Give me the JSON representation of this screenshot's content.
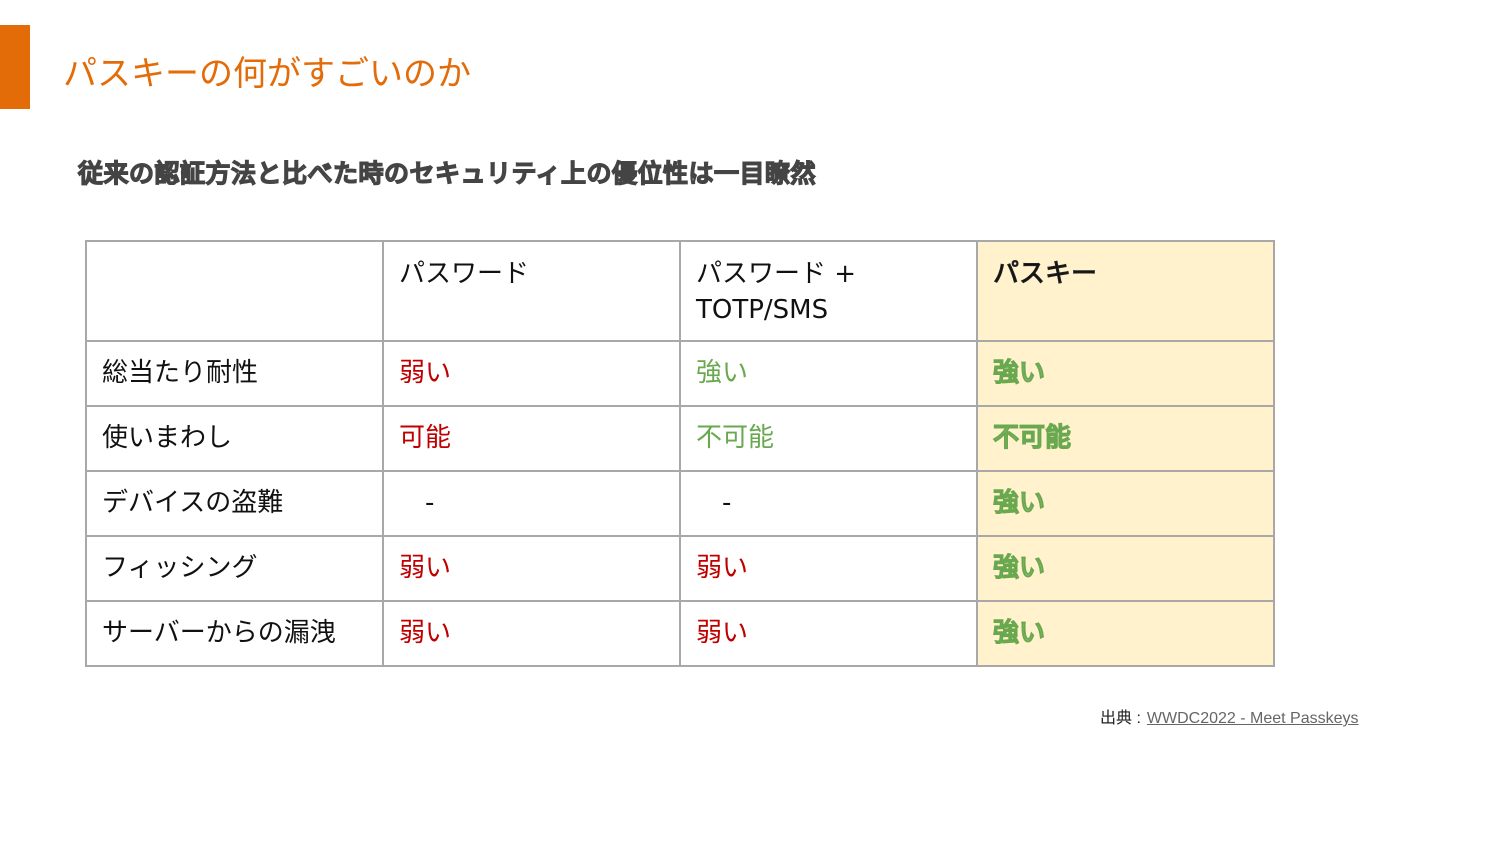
{
  "colors": {
    "accent": "#e36c09",
    "weak": "#c00000",
    "strong": "#6aa84f",
    "highlight_column": "#fff2cc"
  },
  "slide": {
    "title": "パスキーの何がすごいのか",
    "subtitle": "従来の認証方法と比べた時のセキュリティ上の優位性は一目瞭然"
  },
  "table": {
    "headers": [
      "",
      "パスワード",
      "パスワード +\nTOTP/SMS",
      "パスキー"
    ],
    "rows": [
      {
        "label": "総当たり耐性",
        "cells": [
          "弱い",
          "強い",
          "強い"
        ]
      },
      {
        "label": "使いまわし",
        "cells": [
          "可能",
          "不可能",
          "不可能"
        ]
      },
      {
        "label": "デバイスの盗難",
        "cells": [
          "-",
          "-",
          "強い"
        ]
      },
      {
        "label": "フィッシング",
        "cells": [
          "弱い",
          "弱い",
          "強い"
        ]
      },
      {
        "label": "サーバーからの漏洩",
        "cells": [
          "弱い",
          "弱い",
          "強い"
        ]
      }
    ]
  },
  "source": {
    "prefix": "出典 :",
    "link_text": "WWDC2022 - Meet Passkeys"
  }
}
